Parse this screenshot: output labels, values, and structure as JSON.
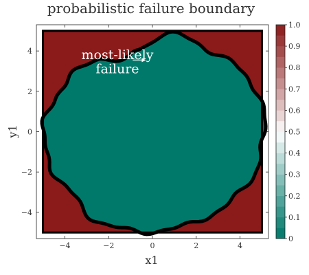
{
  "chart_data": {
    "type": "heatmap",
    "title": "probabilistic failure boundary",
    "xlabel": "x1",
    "ylabel": "y1",
    "xlim": [
      -5.3,
      5.3
    ],
    "ylim": [
      -5.3,
      5.3
    ],
    "xticks": [
      -4,
      -2,
      0,
      2,
      4
    ],
    "yticks": [
      -4,
      -2,
      0,
      2,
      4
    ],
    "xtick_labels": [
      "−4",
      "−2",
      "0",
      "2",
      "4"
    ],
    "ytick_labels": [
      "−4",
      "−2",
      "0",
      "2",
      "4"
    ],
    "grid": false,
    "domain_box": [
      -5,
      5,
      -5,
      5
    ],
    "outside_probability": 1.0,
    "inside_probability": 0.0,
    "boundary_radius_theta_deg": [
      0,
      20,
      40,
      60,
      80,
      100,
      110,
      125,
      140,
      160,
      180,
      200,
      220,
      240,
      260,
      280,
      300,
      320,
      340,
      360
    ],
    "boundary_radius": [
      5.1,
      5.2,
      5.0,
      4.8,
      4.95,
      4.1,
      3.7,
      4.4,
      4.6,
      4.75,
      5.0,
      4.95,
      4.8,
      5.1,
      5.0,
      4.9,
      4.9,
      5.0,
      5.1,
      5.1
    ],
    "annotation": {
      "lines": [
        "most-likely",
        "failure"
      ],
      "point": [
        -0.3,
        3.6
      ]
    },
    "colorbar": {
      "ticks": [
        0.0,
        0.1,
        0.2,
        0.3,
        0.4,
        0.5,
        0.6,
        0.7,
        0.8,
        0.9,
        1.0
      ],
      "tick_labels": [
        "0",
        "0.1",
        "0.2",
        "0.3",
        "0.4",
        "0.5",
        "0.6",
        "0.7",
        "0.8",
        "0.9",
        "1.0"
      ],
      "levels": 20,
      "low_color": "#00796b",
      "mid_color": "#ffffff",
      "high_color": "#8b1a1a"
    },
    "colors": {
      "safe": "#00796b",
      "failure": "#8b1a1a",
      "boundary": "#000000"
    }
  }
}
